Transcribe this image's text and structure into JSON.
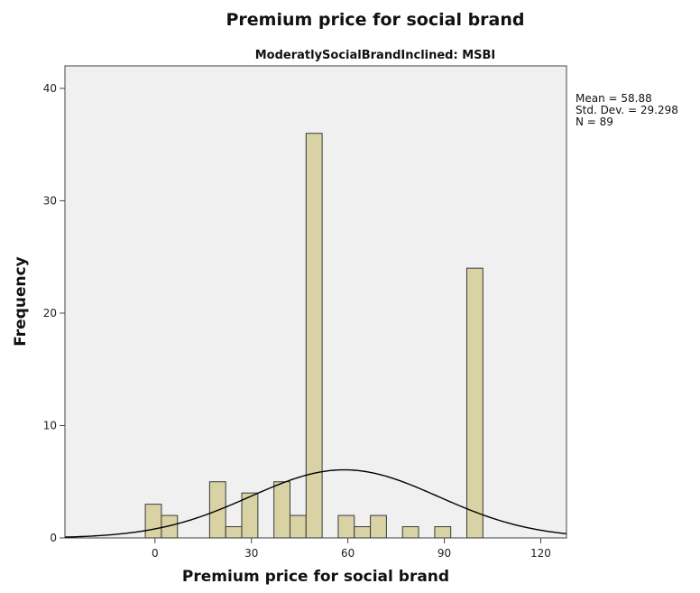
{
  "chart_data": {
    "type": "bar",
    "title": "Premium price for social brand",
    "subtitle": "ModeratlySocialBrandInclined: MSBI",
    "xlabel": "Premium price for social brand",
    "ylabel": "Frequency",
    "xlim": [
      -28,
      128
    ],
    "ylim": [
      0,
      42
    ],
    "x_ticks": [
      0,
      30,
      60,
      90,
      120
    ],
    "y_ticks": [
      0,
      10,
      20,
      30,
      40
    ],
    "bin_width": 5,
    "bins": [
      {
        "start": -3,
        "count": 3
      },
      {
        "start": 2,
        "count": 2
      },
      {
        "start": 17,
        "count": 5
      },
      {
        "start": 22,
        "count": 1
      },
      {
        "start": 27,
        "count": 4
      },
      {
        "start": 37,
        "count": 5
      },
      {
        "start": 42,
        "count": 2
      },
      {
        "start": 47,
        "count": 36
      },
      {
        "start": 57,
        "count": 2
      },
      {
        "start": 62,
        "count": 1
      },
      {
        "start": 67,
        "count": 2
      },
      {
        "start": 77,
        "count": 1
      },
      {
        "start": 87,
        "count": 1
      },
      {
        "start": 97,
        "count": 24
      }
    ],
    "normal_curve": {
      "mean": 58.88,
      "sd": 29.298,
      "n": 89
    },
    "stats_text": [
      "Mean = 58.88",
      "Std. Dev. = 29.298",
      "N = 89"
    ],
    "grid": false,
    "colors": {
      "bar_fill": "#d8d2a4",
      "bar_stroke": "#3a3a3a",
      "plot_bg": "#f0f0f0",
      "curve": "#000000"
    }
  }
}
